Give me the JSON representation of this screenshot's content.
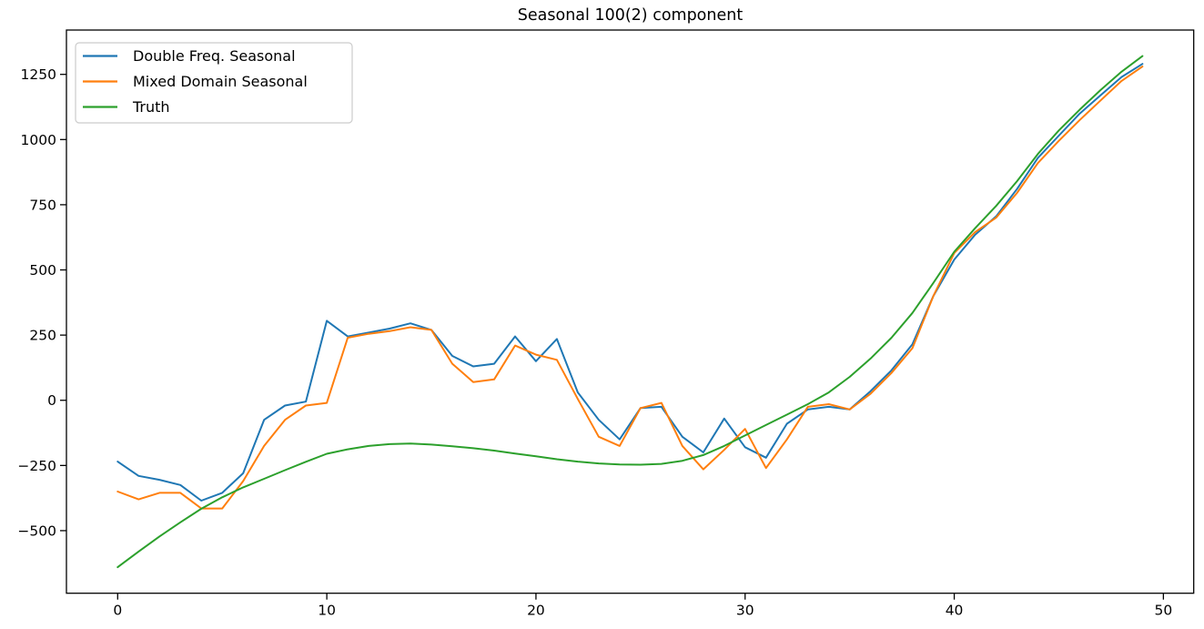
{
  "title": "Seasonal 100(2) component",
  "chart_data": {
    "type": "line",
    "title": "Seasonal 100(2) component",
    "xlabel": "",
    "ylabel": "",
    "grid": false,
    "legend_position": "upper left",
    "xlim": [
      -2.45,
      51.45
    ],
    "ylim": [
      -740,
      1420
    ],
    "xticks": [
      0,
      10,
      20,
      30,
      40,
      50
    ],
    "yticks": [
      -500,
      -250,
      0,
      250,
      500,
      750,
      1000,
      1250
    ],
    "x": [
      0,
      1,
      2,
      3,
      4,
      5,
      6,
      7,
      8,
      9,
      10,
      11,
      12,
      13,
      14,
      15,
      16,
      17,
      18,
      19,
      20,
      21,
      22,
      23,
      24,
      25,
      26,
      27,
      28,
      29,
      30,
      31,
      32,
      33,
      34,
      35,
      36,
      37,
      38,
      39,
      40,
      41,
      42,
      43,
      44,
      45,
      46,
      47,
      48,
      49
    ],
    "series": [
      {
        "name": "Double Freq. Seasonal",
        "color": "#1f77b4",
        "values": [
          -235,
          -290,
          -305,
          -325,
          -385,
          -355,
          -280,
          -75,
          -20,
          -5,
          305,
          245,
          260,
          275,
          295,
          270,
          170,
          130,
          140,
          245,
          150,
          235,
          30,
          -75,
          -150,
          -30,
          -25,
          -140,
          -200,
          -70,
          -180,
          -220,
          -90,
          -35,
          -25,
          -35,
          35,
          115,
          215,
          400,
          540,
          635,
          705,
          810,
          930,
          1015,
          1100,
          1170,
          1240,
          1290
        ]
      },
      {
        "name": "Mixed Domain Seasonal",
        "color": "#ff7f0e",
        "values": [
          -350,
          -380,
          -355,
          -355,
          -415,
          -415,
          -310,
          -175,
          -75,
          -20,
          -10,
          240,
          255,
          265,
          280,
          270,
          140,
          70,
          80,
          210,
          175,
          155,
          5,
          -140,
          -175,
          -30,
          -10,
          -175,
          -265,
          -190,
          -110,
          -260,
          -150,
          -25,
          -15,
          -35,
          25,
          105,
          200,
          400,
          565,
          645,
          700,
          795,
          910,
          995,
          1075,
          1150,
          1225,
          1280
        ]
      },
      {
        "name": "Truth",
        "color": "#2ca02c",
        "values": [
          -640,
          -580,
          -522,
          -468,
          -416,
          -372,
          -334,
          -301,
          -268,
          -236,
          -205,
          -188,
          -175,
          -168,
          -166,
          -170,
          -176,
          -184,
          -193,
          -204,
          -215,
          -226,
          -235,
          -242,
          -246,
          -247,
          -244,
          -232,
          -210,
          -175,
          -135,
          -95,
          -55,
          -15,
          30,
          90,
          160,
          240,
          335,
          450,
          570,
          660,
          745,
          840,
          945,
          1035,
          1115,
          1190,
          1260,
          1320
        ]
      }
    ]
  }
}
